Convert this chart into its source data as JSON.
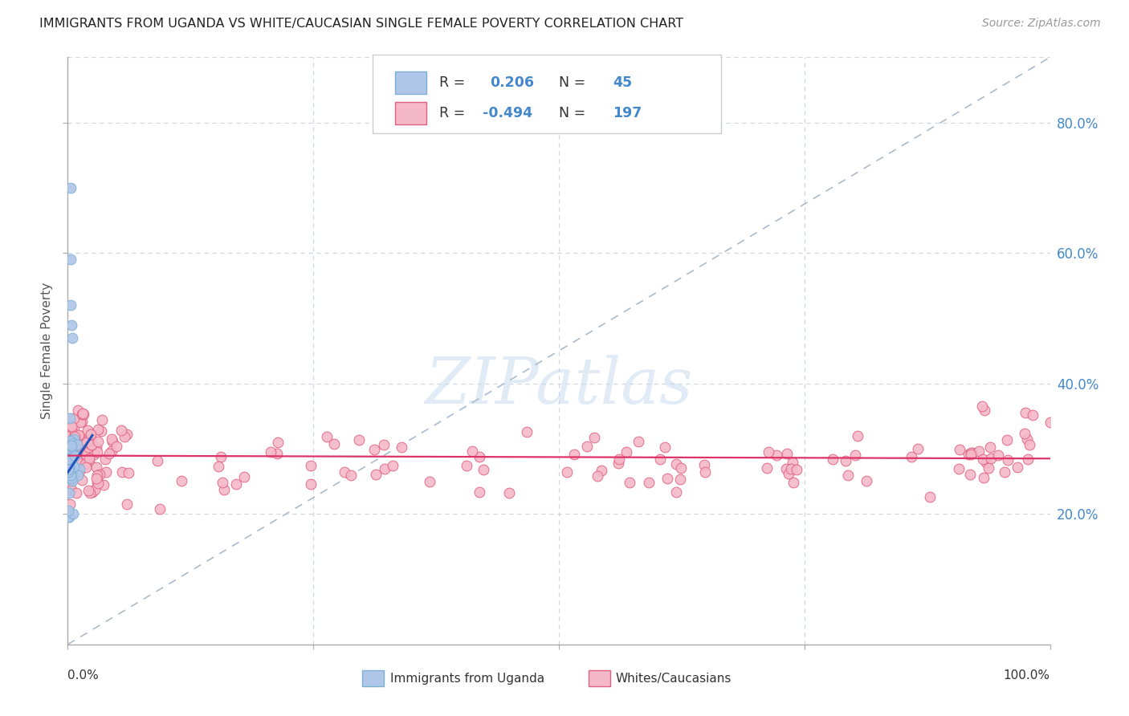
{
  "title": "IMMIGRANTS FROM UGANDA VS WHITE/CAUCASIAN SINGLE FEMALE POVERTY CORRELATION CHART",
  "source": "Source: ZipAtlas.com",
  "ylabel": "Single Female Poverty",
  "right_yticks": [
    "20.0%",
    "40.0%",
    "60.0%",
    "80.0%"
  ],
  "right_ytick_vals": [
    0.2,
    0.4,
    0.6,
    0.8
  ],
  "ylim": [
    0.0,
    0.9
  ],
  "xlim": [
    0.0,
    1.0
  ],
  "legend_entries": [
    {
      "label": "Immigrants from Uganda",
      "R": 0.206,
      "N": 45,
      "color": "#aec6e8",
      "border": "#7bafd4"
    },
    {
      "label": "Whites/Caucasians",
      "R": -0.494,
      "N": 197,
      "color": "#f4b8c8",
      "border": "#e87090"
    }
  ],
  "watermark_text": "ZIPatlas",
  "background_color": "#ffffff",
  "grid_color": "#ccd4e0",
  "title_color": "#222222",
  "source_color": "#999999",
  "right_axis_color": "#4488cc",
  "blue_scatter_color": "#aec6e8",
  "blue_scatter_edge": "#7bafd4",
  "pink_scatter_color": "#f4b8c8",
  "pink_scatter_edge": "#e06080",
  "blue_trend_color": "#2255bb",
  "pink_trend_color": "#dd3366",
  "dashed_diag_color": "#aabbcc"
}
